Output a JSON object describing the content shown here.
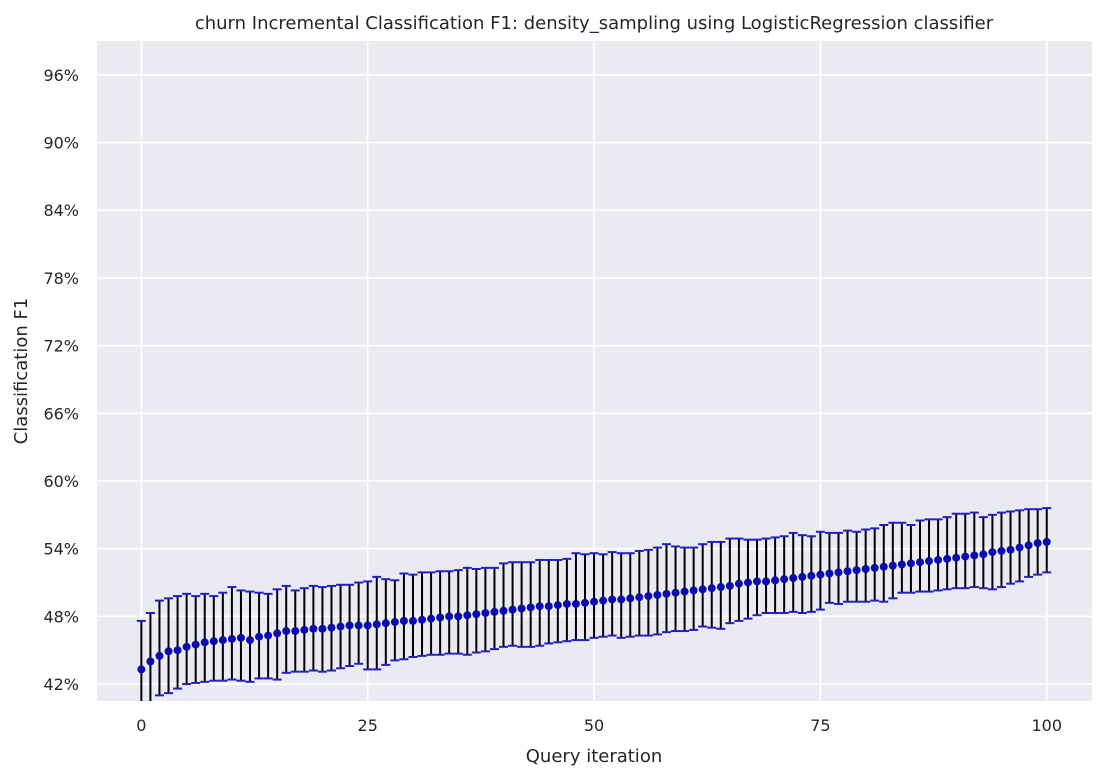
{
  "chart_data": {
    "type": "scatter",
    "title": "churn Incremental Classification F1: density_sampling using LogisticRegression classifier",
    "xlabel": "Query iteration",
    "ylabel": "Classification F1",
    "xlim": [
      -4.9,
      105
    ],
    "ylim": [
      40.5,
      99
    ],
    "xticks": [
      0,
      25,
      50,
      75,
      100
    ],
    "yticks": [
      42,
      48,
      54,
      60,
      66,
      72,
      78,
      84,
      90,
      96
    ],
    "ytick_suffix": "%",
    "grid": true,
    "background": "#eaeaf2",
    "marker_color": "#0b0bb0",
    "errorbar_color": "#000000",
    "cap_color": "#2020c0",
    "series": [
      {
        "x_start": 0,
        "x_step": 1,
        "mean": [
          43.3,
          44.0,
          44.5,
          44.9,
          45.0,
          45.3,
          45.5,
          45.7,
          45.8,
          45.9,
          46.0,
          46.1,
          45.9,
          46.2,
          46.3,
          46.5,
          46.7,
          46.7,
          46.8,
          46.9,
          46.9,
          47.0,
          47.1,
          47.2,
          47.2,
          47.2,
          47.3,
          47.4,
          47.5,
          47.6,
          47.6,
          47.7,
          47.8,
          47.9,
          48.0,
          48.0,
          48.1,
          48.2,
          48.3,
          48.4,
          48.5,
          48.6,
          48.7,
          48.8,
          48.9,
          48.9,
          49.0,
          49.1,
          49.1,
          49.2,
          49.3,
          49.4,
          49.5,
          49.5,
          49.6,
          49.7,
          49.8,
          49.9,
          50.0,
          50.1,
          50.2,
          50.3,
          50.4,
          50.5,
          50.6,
          50.7,
          50.9,
          51.0,
          51.1,
          51.1,
          51.2,
          51.3,
          51.4,
          51.5,
          51.6,
          51.7,
          51.8,
          51.9,
          52.0,
          52.1,
          52.2,
          52.3,
          52.4,
          52.5,
          52.6,
          52.7,
          52.8,
          52.9,
          53.0,
          53.1,
          53.2,
          53.3,
          53.4,
          53.5,
          53.7,
          53.8,
          53.9,
          54.1,
          54.3,
          54.5,
          54.6
        ],
        "upper": [
          47.6,
          48.3,
          49.4,
          49.6,
          49.8,
          50.0,
          49.8,
          50.0,
          49.8,
          50.1,
          50.6,
          50.3,
          50.2,
          50.1,
          50.0,
          50.4,
          50.7,
          50.3,
          50.5,
          50.7,
          50.6,
          50.7,
          50.8,
          50.8,
          51.0,
          51.1,
          51.5,
          51.3,
          51.2,
          51.8,
          51.7,
          51.9,
          51.9,
          52.0,
          52.0,
          52.1,
          52.3,
          52.2,
          52.3,
          52.3,
          52.7,
          52.8,
          52.8,
          52.8,
          53.0,
          53.0,
          53.0,
          53.1,
          53.6,
          53.5,
          53.6,
          53.5,
          53.7,
          53.6,
          53.6,
          53.8,
          53.9,
          54.1,
          54.4,
          54.2,
          54.1,
          54.1,
          54.4,
          54.6,
          54.6,
          54.9,
          54.9,
          54.8,
          54.8,
          54.9,
          55.0,
          55.1,
          55.4,
          55.2,
          55.1,
          55.5,
          55.4,
          55.4,
          55.6,
          55.5,
          55.7,
          55.8,
          56.1,
          56.3,
          56.3,
          56.1,
          56.5,
          56.6,
          56.6,
          56.8,
          57.1,
          57.1,
          57.2,
          56.8,
          57.0,
          57.2,
          57.3,
          57.4,
          57.5,
          57.5,
          57.6
        ],
        "lower": [
          39.0,
          39.7,
          41.0,
          41.2,
          41.6,
          42.0,
          42.1,
          42.2,
          42.3,
          42.3,
          42.4,
          42.3,
          42.2,
          42.5,
          42.5,
          42.4,
          43.0,
          43.1,
          43.1,
          43.2,
          43.1,
          43.2,
          43.4,
          43.6,
          43.8,
          43.3,
          43.3,
          43.7,
          44.1,
          44.2,
          44.4,
          44.5,
          44.6,
          44.6,
          44.7,
          44.7,
          44.6,
          44.8,
          44.9,
          45.1,
          45.3,
          45.4,
          45.3,
          45.3,
          45.4,
          45.6,
          45.7,
          45.8,
          45.9,
          45.9,
          46.1,
          46.2,
          46.3,
          46.1,
          46.2,
          46.3,
          46.3,
          46.4,
          46.6,
          46.7,
          46.7,
          46.8,
          47.1,
          47.0,
          46.9,
          47.4,
          47.6,
          47.8,
          48.1,
          48.3,
          48.3,
          48.3,
          48.4,
          48.3,
          48.4,
          48.6,
          49.2,
          49.1,
          49.3,
          49.3,
          49.3,
          49.4,
          49.3,
          49.6,
          50.1,
          50.1,
          50.2,
          50.2,
          50.3,
          50.4,
          50.5,
          50.5,
          50.6,
          50.5,
          50.4,
          50.6,
          50.9,
          51.1,
          51.5,
          51.7,
          51.9
        ]
      }
    ]
  }
}
